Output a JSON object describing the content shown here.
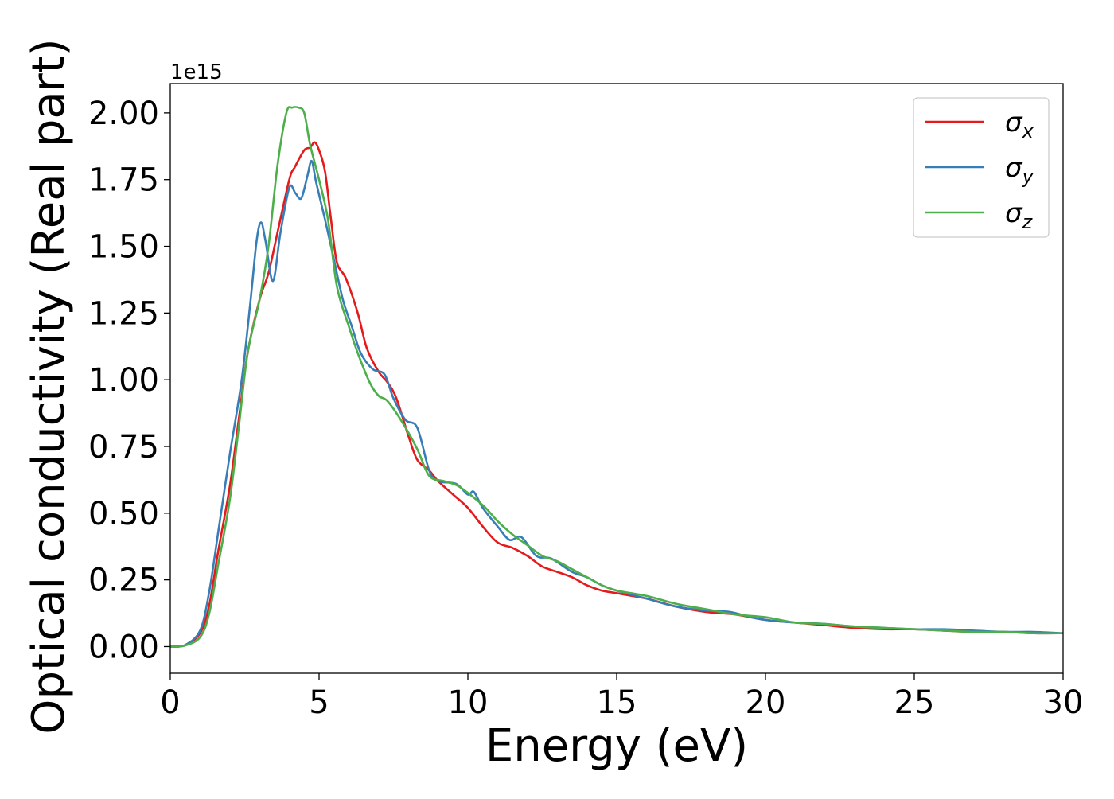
{
  "chart_data": {
    "type": "line",
    "xlabel": "Energy (eV)",
    "ylabel": "Optical conductivity (Real part)",
    "y_offset_label": "1e15",
    "xlim": [
      0,
      30
    ],
    "ylim": [
      -0.1,
      2.11
    ],
    "x_ticks": [
      0,
      5,
      10,
      15,
      20,
      25,
      30
    ],
    "x_tick_labels": [
      "0",
      "5",
      "10",
      "15",
      "20",
      "25",
      "30"
    ],
    "y_ticks": [
      0.0,
      0.25,
      0.5,
      0.75,
      1.0,
      1.25,
      1.5,
      1.75,
      2.0
    ],
    "y_tick_labels": [
      "0.00",
      "0.25",
      "0.50",
      "0.75",
      "1.00",
      "1.25",
      "1.50",
      "1.75",
      "2.00"
    ],
    "grid": false,
    "legend_position": "top-right",
    "colors": {
      "sigma_x": "#e41a1c",
      "sigma_y": "#377eb8",
      "sigma_z": "#4daf4a"
    },
    "series": [
      {
        "key": "sigma_x",
        "name": "σ",
        "subscript": "x",
        "points": [
          [
            0,
            0
          ],
          [
            0.5,
            0.005
          ],
          [
            1,
            0.05
          ],
          [
            1.3,
            0.15
          ],
          [
            1.6,
            0.35
          ],
          [
            2,
            0.6
          ],
          [
            2.3,
            0.85
          ],
          [
            2.6,
            1.1
          ],
          [
            3,
            1.3
          ],
          [
            3.3,
            1.4
          ],
          [
            3.6,
            1.55
          ],
          [
            4,
            1.75
          ],
          [
            4.2,
            1.8
          ],
          [
            4.5,
            1.86
          ],
          [
            4.7,
            1.87
          ],
          [
            4.85,
            1.89
          ],
          [
            5,
            1.86
          ],
          [
            5.2,
            1.78
          ],
          [
            5.4,
            1.6
          ],
          [
            5.6,
            1.44
          ],
          [
            5.9,
            1.38
          ],
          [
            6.3,
            1.25
          ],
          [
            6.6,
            1.12
          ],
          [
            7,
            1.03
          ],
          [
            7.3,
            0.99
          ],
          [
            7.6,
            0.93
          ],
          [
            8,
            0.79
          ],
          [
            8.3,
            0.7
          ],
          [
            8.7,
            0.66
          ],
          [
            9,
            0.62
          ],
          [
            9.5,
            0.57
          ],
          [
            10,
            0.52
          ],
          [
            10.5,
            0.45
          ],
          [
            11,
            0.39
          ],
          [
            11.5,
            0.37
          ],
          [
            12,
            0.34
          ],
          [
            12.5,
            0.3
          ],
          [
            13,
            0.28
          ],
          [
            13.5,
            0.26
          ],
          [
            14,
            0.23
          ],
          [
            14.5,
            0.21
          ],
          [
            15,
            0.2
          ],
          [
            16,
            0.18
          ],
          [
            17,
            0.15
          ],
          [
            18,
            0.13
          ],
          [
            19,
            0.12
          ],
          [
            20,
            0.1
          ],
          [
            21,
            0.09
          ],
          [
            22,
            0.08
          ],
          [
            23,
            0.07
          ],
          [
            24,
            0.065
          ],
          [
            25,
            0.065
          ],
          [
            26,
            0.06
          ],
          [
            27,
            0.055
          ],
          [
            28,
            0.055
          ],
          [
            29,
            0.05
          ],
          [
            30,
            0.05
          ]
        ]
      },
      {
        "key": "sigma_y",
        "name": "σ",
        "subscript": "y",
        "points": [
          [
            0,
            0
          ],
          [
            0.5,
            0.006
          ],
          [
            1,
            0.06
          ],
          [
            1.3,
            0.2
          ],
          [
            1.6,
            0.42
          ],
          [
            2,
            0.72
          ],
          [
            2.4,
            1.0
          ],
          [
            2.7,
            1.3
          ],
          [
            2.9,
            1.52
          ],
          [
            3.05,
            1.59
          ],
          [
            3.2,
            1.52
          ],
          [
            3.45,
            1.37
          ],
          [
            3.7,
            1.55
          ],
          [
            4,
            1.72
          ],
          [
            4.2,
            1.7
          ],
          [
            4.4,
            1.68
          ],
          [
            4.6,
            1.76
          ],
          [
            4.75,
            1.82
          ],
          [
            4.9,
            1.74
          ],
          [
            5.2,
            1.6
          ],
          [
            5.5,
            1.45
          ],
          [
            5.8,
            1.3
          ],
          [
            6.1,
            1.2
          ],
          [
            6.4,
            1.1
          ],
          [
            6.8,
            1.04
          ],
          [
            7.2,
            1.02
          ],
          [
            7.5,
            0.93
          ],
          [
            7.9,
            0.85
          ],
          [
            8.3,
            0.82
          ],
          [
            8.7,
            0.66
          ],
          [
            9,
            0.62
          ],
          [
            9.6,
            0.61
          ],
          [
            10,
            0.57
          ],
          [
            10.2,
            0.58
          ],
          [
            10.5,
            0.52
          ],
          [
            11,
            0.45
          ],
          [
            11.4,
            0.4
          ],
          [
            11.8,
            0.41
          ],
          [
            12.3,
            0.34
          ],
          [
            12.8,
            0.33
          ],
          [
            13.5,
            0.28
          ],
          [
            14,
            0.26
          ],
          [
            14.5,
            0.23
          ],
          [
            15,
            0.21
          ],
          [
            16,
            0.18
          ],
          [
            17,
            0.15
          ],
          [
            18,
            0.135
          ],
          [
            18.8,
            0.13
          ],
          [
            19.5,
            0.11
          ],
          [
            20,
            0.1
          ],
          [
            21,
            0.09
          ],
          [
            22,
            0.085
          ],
          [
            23,
            0.075
          ],
          [
            24,
            0.07
          ],
          [
            25,
            0.065
          ],
          [
            26,
            0.065
          ],
          [
            27,
            0.06
          ],
          [
            28,
            0.055
          ],
          [
            29,
            0.055
          ],
          [
            30,
            0.05
          ]
        ]
      },
      {
        "key": "sigma_z",
        "name": "σ",
        "subscript": "z",
        "points": [
          [
            0,
            0
          ],
          [
            0.5,
            0.004
          ],
          [
            1,
            0.035
          ],
          [
            1.3,
            0.12
          ],
          [
            1.6,
            0.3
          ],
          [
            2,
            0.55
          ],
          [
            2.3,
            0.82
          ],
          [
            2.6,
            1.1
          ],
          [
            3,
            1.3
          ],
          [
            3.3,
            1.5
          ],
          [
            3.6,
            1.8
          ],
          [
            3.9,
            2.0
          ],
          [
            4.1,
            2.02
          ],
          [
            4.3,
            2.02
          ],
          [
            4.5,
            2.0
          ],
          [
            4.7,
            1.88
          ],
          [
            5,
            1.75
          ],
          [
            5.3,
            1.6
          ],
          [
            5.6,
            1.35
          ],
          [
            6,
            1.2
          ],
          [
            6.3,
            1.1
          ],
          [
            6.7,
            0.99
          ],
          [
            7,
            0.94
          ],
          [
            7.3,
            0.92
          ],
          [
            7.8,
            0.84
          ],
          [
            8.3,
            0.74
          ],
          [
            8.7,
            0.64
          ],
          [
            9.2,
            0.62
          ],
          [
            9.7,
            0.6
          ],
          [
            10.5,
            0.53
          ],
          [
            11,
            0.47
          ],
          [
            11.5,
            0.42
          ],
          [
            12,
            0.38
          ],
          [
            12.5,
            0.34
          ],
          [
            13,
            0.32
          ],
          [
            13.5,
            0.29
          ],
          [
            14,
            0.26
          ],
          [
            14.5,
            0.23
          ],
          [
            15,
            0.21
          ],
          [
            16,
            0.19
          ],
          [
            17,
            0.16
          ],
          [
            18,
            0.14
          ],
          [
            19,
            0.12
          ],
          [
            20,
            0.11
          ],
          [
            21,
            0.09
          ],
          [
            22,
            0.085
          ],
          [
            23,
            0.075
          ],
          [
            24,
            0.07
          ],
          [
            25,
            0.065
          ],
          [
            26,
            0.06
          ],
          [
            27,
            0.055
          ],
          [
            28,
            0.055
          ],
          [
            29,
            0.05
          ],
          [
            30,
            0.05
          ]
        ]
      }
    ]
  }
}
